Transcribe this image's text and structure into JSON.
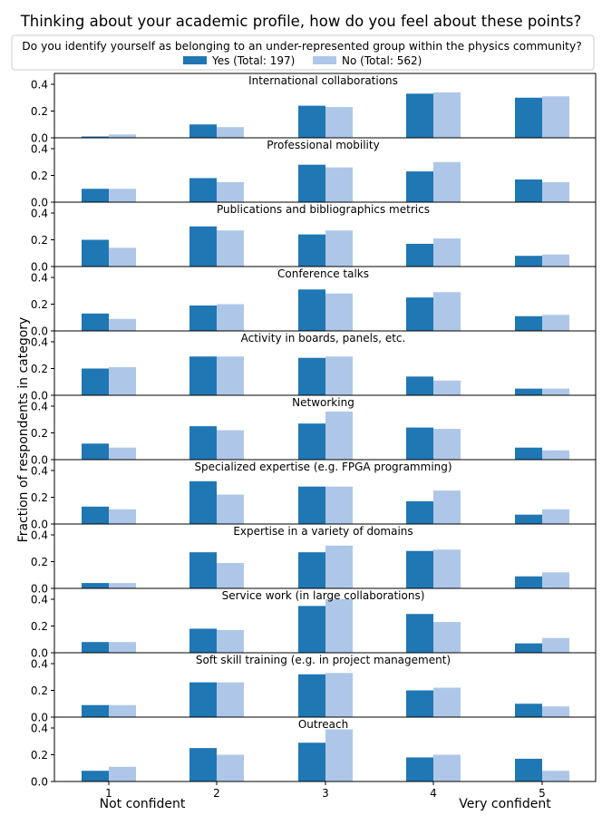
{
  "chart_data": {
    "type": "bar",
    "title": "Thinking about your academic profile, how do you feel about these points?",
    "legend": {
      "title": "Do you identify yourself as belonging to an under-represented group within the physics community?",
      "placement": "top-center"
    },
    "ylabel": "Fraction of respondents in category",
    "xlabel_left": "Not confident",
    "xlabel_right": "Very confident",
    "categories": [
      "1",
      "2",
      "3",
      "4",
      "5"
    ],
    "ylim": [
      0,
      0.42
    ],
    "yticks": [
      "0.0",
      "0.2",
      "0.4"
    ],
    "series": [
      {
        "name": "Yes (Total: 197)",
        "color": "#1f77b4"
      },
      {
        "name": "No (Total: 562)",
        "color": "#aec7e8"
      }
    ],
    "panels": [
      {
        "title": "International collaborations",
        "yes": [
          0.01,
          0.1,
          0.24,
          0.33,
          0.3
        ],
        "no": [
          0.025,
          0.08,
          0.23,
          0.34,
          0.31
        ]
      },
      {
        "title": "Professional mobility",
        "yes": [
          0.1,
          0.18,
          0.28,
          0.23,
          0.17
        ],
        "no": [
          0.1,
          0.15,
          0.26,
          0.3,
          0.15
        ]
      },
      {
        "title": "Publications and bibliographics metrics",
        "yes": [
          0.2,
          0.3,
          0.24,
          0.17,
          0.08
        ],
        "no": [
          0.14,
          0.27,
          0.27,
          0.21,
          0.09
        ]
      },
      {
        "title": "Conference talks",
        "yes": [
          0.13,
          0.19,
          0.31,
          0.25,
          0.11
        ],
        "no": [
          0.09,
          0.2,
          0.28,
          0.29,
          0.12
        ]
      },
      {
        "title": "Activity in boards, panels, etc.",
        "yes": [
          0.2,
          0.29,
          0.28,
          0.14,
          0.05
        ],
        "no": [
          0.21,
          0.29,
          0.29,
          0.11,
          0.05
        ]
      },
      {
        "title": "Networking",
        "yes": [
          0.12,
          0.25,
          0.27,
          0.24,
          0.09
        ],
        "no": [
          0.09,
          0.22,
          0.36,
          0.23,
          0.07
        ]
      },
      {
        "title": "Specialized expertise (e.g. FPGA programming)",
        "yes": [
          0.13,
          0.32,
          0.28,
          0.17,
          0.07
        ],
        "no": [
          0.11,
          0.22,
          0.28,
          0.25,
          0.11
        ]
      },
      {
        "title": "Expertise in a variety of domains",
        "yes": [
          0.04,
          0.27,
          0.27,
          0.28,
          0.09
        ],
        "no": [
          0.04,
          0.19,
          0.32,
          0.29,
          0.12
        ]
      },
      {
        "title": "Service work (in large collaborations)",
        "yes": [
          0.08,
          0.18,
          0.35,
          0.29,
          0.07
        ],
        "no": [
          0.08,
          0.17,
          0.4,
          0.23,
          0.11
        ]
      },
      {
        "title": "Soft skill training (e.g. in project management)",
        "yes": [
          0.09,
          0.26,
          0.32,
          0.2,
          0.1
        ],
        "no": [
          0.09,
          0.26,
          0.33,
          0.22,
          0.08
        ]
      },
      {
        "title": "Outreach",
        "yes": [
          0.08,
          0.25,
          0.29,
          0.18,
          0.17
        ],
        "no": [
          0.11,
          0.2,
          0.39,
          0.2,
          0.08
        ]
      }
    ]
  }
}
